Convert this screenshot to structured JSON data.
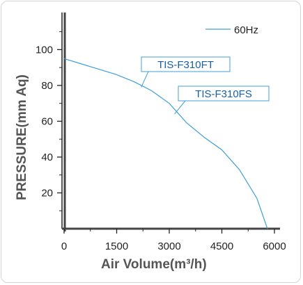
{
  "chart_data": {
    "type": "line",
    "xlabel": "Air Volume(m³/h)",
    "ylabel": "PRESSURE(mm Aq)",
    "xlim": [
      0,
      6000
    ],
    "ylim": [
      0,
      118
    ],
    "x_ticks": [
      0,
      1500,
      3000,
      4500,
      6000
    ],
    "x_tick_labels": [
      "0",
      "1500",
      "3000",
      "4500",
      "6000"
    ],
    "y_ticks": [
      20,
      40,
      60,
      80,
      100
    ],
    "y_tick_labels": [
      "20",
      "40",
      "60",
      "80",
      "100"
    ],
    "x_minor_ticks": [
      750,
      2250,
      3750,
      5250
    ],
    "y_minor_ticks": [
      10,
      30,
      50,
      70,
      90,
      110
    ],
    "grid": false,
    "legend_position": "top-right",
    "series": [
      {
        "name": "60Hz",
        "color": "#3f9fd6",
        "x": [
          0,
          500,
          1000,
          1500,
          2000,
          2500,
          3000,
          3500,
          4000,
          4500,
          5000,
          5500,
          5800
        ],
        "y": [
          95,
          92,
          89,
          86,
          82,
          77,
          70,
          59,
          51,
          44,
          33,
          17,
          0
        ]
      }
    ],
    "annotations": [
      {
        "label": "TIS-F310FT",
        "x": 2200,
        "y": 79
      },
      {
        "label": "TIS-F310FS",
        "x": 3150,
        "y": 64
      }
    ]
  }
}
